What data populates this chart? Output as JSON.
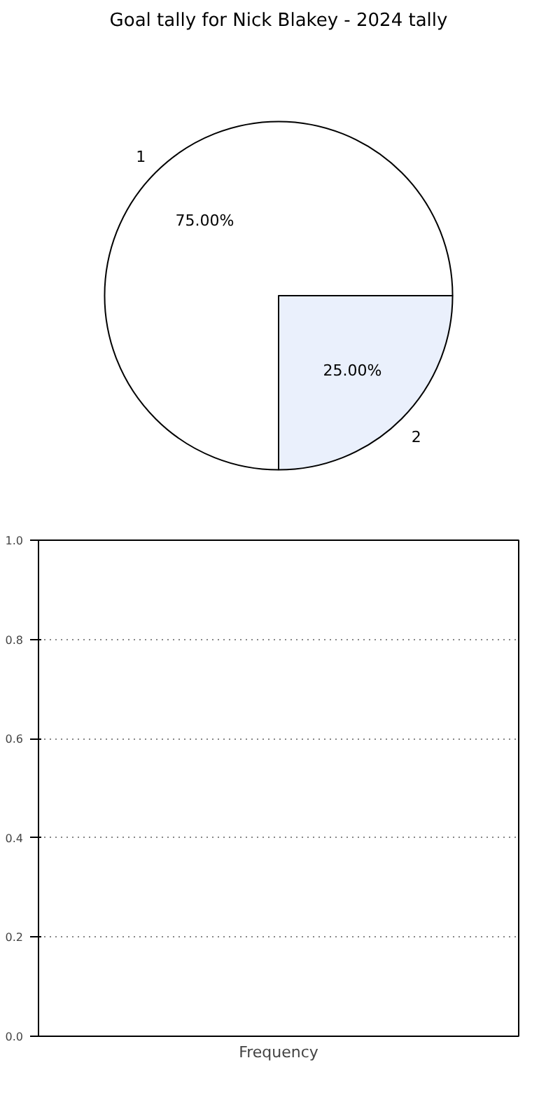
{
  "chart_data": [
    {
      "type": "pie",
      "title": "Goal tally for Nick Blakey - 2024 tally",
      "categories": [
        "1",
        "2"
      ],
      "values": [
        75,
        25
      ],
      "colors": [
        "#ffffff",
        "#eaf0fc"
      ],
      "value_labels": [
        "75.00%",
        "25.00%"
      ]
    },
    {
      "type": "bar",
      "xlabel": "Frequency",
      "categories": [
        null
      ],
      "values": [
        0
      ],
      "ylim": [
        0,
        1
      ],
      "yticks": [
        {
          "value": 0,
          "label": "0.0"
        },
        {
          "value": 0.2,
          "label": "0.2"
        },
        {
          "value": 0.4,
          "label": "0.4"
        },
        {
          "value": 0.6,
          "label": "0.6"
        },
        {
          "value": 0.8,
          "label": "0.8"
        },
        {
          "value": 1,
          "label": "1.0"
        }
      ],
      "grid": "y",
      "tick_labels": "y"
    }
  ]
}
